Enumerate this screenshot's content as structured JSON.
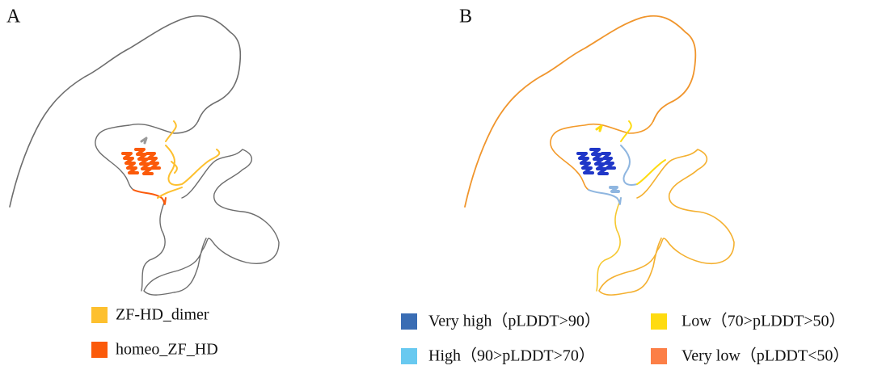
{
  "panels": [
    {
      "label": "A",
      "legend": [
        {
          "label": "ZF-HD_dimer",
          "color": "#fdc02f"
        },
        {
          "label": "homeo_ZF_HD",
          "color": "#fb5a0a"
        }
      ]
    },
    {
      "label": "B",
      "legend": [
        {
          "label": "Very high（pLDDT>90）",
          "color": "#3a6db4"
        },
        {
          "label": "High（90>pLDDT>70）",
          "color": "#68c9f0"
        },
        {
          "label": "Low（70>pLDDT>50）",
          "color": "#fedb10"
        },
        {
          "label": "Very low（pLDDT<50）",
          "color": "#fc7f47"
        }
      ]
    }
  ]
}
